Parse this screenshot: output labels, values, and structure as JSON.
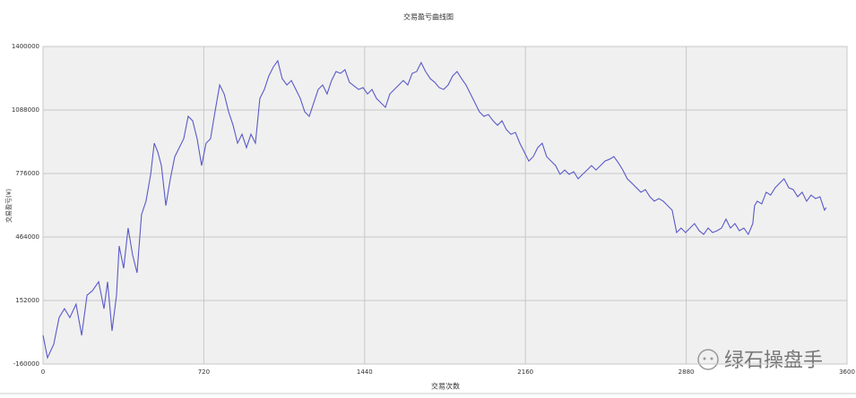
{
  "chart_data": {
    "type": "line",
    "title": "交易盈亏曲线图",
    "x_label": "交易次数",
    "y_label": "交易盈亏(¥)",
    "watermark": "绿石操盘手",
    "color": "#5a5ac8",
    "grid": true,
    "xlim": [
      0,
      3600
    ],
    "xticks": [
      0,
      720,
      1440,
      2160,
      2880,
      3600
    ],
    "ylim": [
      -160000,
      1400000
    ],
    "yticks": [
      -160000,
      152000,
      464000,
      776000,
      1088000,
      1400000
    ],
    "x": [
      0,
      20,
      48,
      72,
      96,
      120,
      148,
      173,
      197,
      221,
      249,
      273,
      289,
      309,
      329,
      341,
      361,
      381,
      401,
      421,
      441,
      461,
      482,
      498,
      514,
      530,
      550,
      570,
      590,
      610,
      630,
      650,
      670,
      690,
      710,
      730,
      750,
      770,
      791,
      811,
      831,
      851,
      871,
      891,
      911,
      931,
      951,
      971,
      991,
      1011,
      1031,
      1051,
      1071,
      1092,
      1112,
      1132,
      1152,
      1172,
      1192,
      1212,
      1232,
      1252,
      1272,
      1292,
      1312,
      1332,
      1352,
      1372,
      1392,
      1413,
      1433,
      1453,
      1473,
      1493,
      1513,
      1533,
      1553,
      1573,
      1593,
      1613,
      1633,
      1653,
      1673,
      1693,
      1713,
      1734,
      1754,
      1774,
      1794,
      1814,
      1834,
      1854,
      1874,
      1894,
      1914,
      1934,
      1954,
      1974,
      1994,
      2015,
      2035,
      2055,
      2075,
      2095,
      2115,
      2135,
      2155,
      2175,
      2195,
      2215,
      2235,
      2255,
      2275,
      2295,
      2315,
      2336,
      2356,
      2376,
      2396,
      2416,
      2436,
      2456,
      2476,
      2496,
      2516,
      2536,
      2556,
      2576,
      2596,
      2616,
      2637,
      2657,
      2677,
      2697,
      2717,
      2737,
      2757,
      2777,
      2797,
      2817,
      2837,
      2857,
      2877,
      2897,
      2917,
      2938,
      2958,
      2978,
      2998,
      3018,
      3038,
      3058,
      3078,
      3098,
      3118,
      3138,
      3158,
      3178,
      3186,
      3198,
      3218,
      3238,
      3258,
      3278,
      3298,
      3318,
      3339,
      3359,
      3379,
      3399,
      3419,
      3439,
      3459,
      3479,
      3499,
      3507
    ],
    "values": [
      -19000,
      -129000,
      -63000,
      68000,
      112000,
      68000,
      134000,
      -19000,
      178000,
      200000,
      244000,
      112000,
      244000,
      3000,
      178000,
      420000,
      310000,
      508000,
      376000,
      288000,
      574000,
      640000,
      772000,
      925000,
      881000,
      815000,
      618000,
      750000,
      859000,
      903000,
      947000,
      1057000,
      1035000,
      947000,
      815000,
      925000,
      947000,
      1079000,
      1211000,
      1167000,
      1079000,
      1013000,
      925000,
      969000,
      903000,
      969000,
      925000,
      1145000,
      1189000,
      1255000,
      1299000,
      1330000,
      1242000,
      1211000,
      1233000,
      1189000,
      1145000,
      1079000,
      1057000,
      1123000,
      1189000,
      1211000,
      1167000,
      1233000,
      1277000,
      1268000,
      1286000,
      1224000,
      1207000,
      1189000,
      1198000,
      1167000,
      1189000,
      1145000,
      1123000,
      1101000,
      1167000,
      1189000,
      1211000,
      1233000,
      1211000,
      1268000,
      1277000,
      1321000,
      1277000,
      1242000,
      1224000,
      1198000,
      1189000,
      1211000,
      1255000,
      1277000,
      1242000,
      1211000,
      1167000,
      1123000,
      1079000,
      1057000,
      1066000,
      1035000,
      1013000,
      1035000,
      991000,
      969000,
      978000,
      925000,
      881000,
      837000,
      859000,
      903000,
      925000,
      859000,
      837000,
      815000,
      772000,
      793000,
      772000,
      785000,
      750000,
      772000,
      793000,
      815000,
      793000,
      815000,
      837000,
      846000,
      859000,
      829000,
      793000,
      750000,
      728000,
      706000,
      684000,
      697000,
      662000,
      640000,
      653000,
      640000,
      618000,
      596000,
      486000,
      508000,
      486000,
      508000,
      530000,
      495000,
      477000,
      508000,
      486000,
      495000,
      508000,
      552000,
      508000,
      530000,
      495000,
      508000,
      477000,
      530000,
      618000,
      640000,
      627000,
      684000,
      670000,
      706000,
      728000,
      750000,
      706000,
      697000,
      662000,
      684000,
      640000,
      670000,
      653000,
      662000,
      596000,
      609000
    ]
  }
}
